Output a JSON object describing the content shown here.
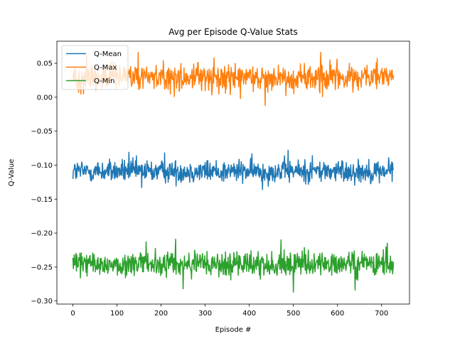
{
  "chart_data": {
    "type": "line",
    "title": "Avg per Episode Q-Value Stats",
    "xlabel": "Episode #",
    "ylabel": "Q-Value",
    "xlim": [
      -36.35,
      763.35
    ],
    "ylim": [
      -0.3045,
      0.0825
    ],
    "x_ticks": [
      0,
      100,
      200,
      300,
      400,
      500,
      600,
      700
    ],
    "y_ticks": [
      -0.3,
      -0.25,
      -0.2,
      -0.15,
      -0.1,
      -0.05,
      0.0,
      0.05
    ],
    "y_tick_labels": [
      "−0.30",
      "−0.25",
      "−0.20",
      "−0.15",
      "−0.10",
      "−0.05",
      "0.00",
      "0.05"
    ],
    "x_tick_labels": [
      "0",
      "100",
      "200",
      "300",
      "400",
      "500",
      "600",
      "700"
    ],
    "grid": false,
    "legend_position": "top-left",
    "episode_range": [
      0,
      727
    ],
    "series": [
      {
        "name": "Q-Mean",
        "color": "#1f77b4",
        "mean": -0.109,
        "spread": 0.0085,
        "spikes": [
          [
            127,
            -0.081
          ],
          [
            208,
            -0.082
          ],
          [
            488,
            -0.078
          ],
          [
            543,
            -0.086
          ],
          [
            716,
            -0.089
          ],
          [
            430,
            -0.136
          ],
          [
            156,
            -0.133
          ]
        ]
      },
      {
        "name": "Q-Max",
        "color": "#ff7f0e",
        "mean": 0.029,
        "spread": 0.0105,
        "spikes": [
          [
            31,
            0.061
          ],
          [
            148,
            0.066
          ],
          [
            562,
            0.066
          ],
          [
            436,
            -0.012
          ],
          [
            380,
            -0.002
          ],
          [
            230,
            0.001
          ],
          [
            690,
            0.057
          ]
        ]
      },
      {
        "name": "Q-Min",
        "color": "#2ca02c",
        "mean": -0.246,
        "spread": 0.0095,
        "spikes": [
          [
            233,
            -0.209
          ],
          [
            472,
            -0.21
          ],
          [
            500,
            -0.287
          ],
          [
            166,
            -0.213
          ],
          [
            250,
            -0.282
          ],
          [
            713,
            -0.215
          ],
          [
            640,
            -0.284
          ]
        ]
      }
    ]
  }
}
